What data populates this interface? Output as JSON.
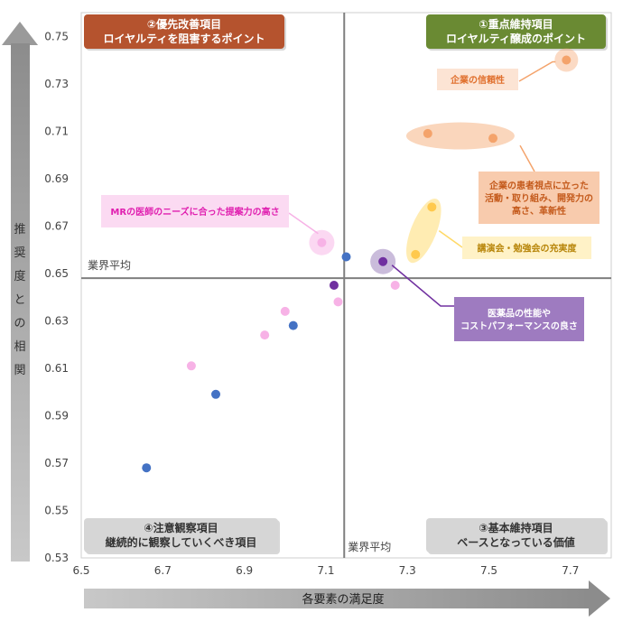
{
  "chart_data": {
    "type": "scatter",
    "xlabel": "各要素の満足度",
    "ylabel": [
      "推",
      "奨",
      "度",
      "と",
      "の",
      "相",
      "関"
    ],
    "xlim": [
      6.5,
      7.8
    ],
    "ylim": [
      0.53,
      0.76
    ],
    "x_ticks": [
      "6.5",
      "6.7",
      "6.9",
      "7.1",
      "7.3",
      "7.5",
      "7.7"
    ],
    "x_tick_values": [
      6.5,
      6.7,
      6.9,
      7.1,
      7.3,
      7.5,
      7.7
    ],
    "y_ticks": [
      "0.75",
      "0.73",
      "0.71",
      "0.69",
      "0.67",
      "0.65",
      "0.63",
      "0.61",
      "0.59",
      "0.57",
      "0.55",
      "0.53"
    ],
    "y_tick_values": [
      0.75,
      0.73,
      0.71,
      0.69,
      0.67,
      0.65,
      0.63,
      0.61,
      0.59,
      0.57,
      0.55,
      0.53
    ],
    "avg_x": 7.145,
    "avg_y": 0.648,
    "avg_label_x": "業界平均",
    "avg_label_y": "業界平均",
    "quadrants": {
      "top_left": {
        "line1": "②優先改善項目",
        "line2": "ロイヤルティを阻害するポイント",
        "color": "#b5532e"
      },
      "top_right": {
        "line1": "①重点維持項目",
        "line2": "ロイヤルティ醸成のポイント",
        "color": "#6a8a33"
      },
      "bottom_left": {
        "line1": "④注意観察項目",
        "line2": "継続的に観察していくべき項目",
        "color": "#d6d6d6"
      },
      "bottom_right": {
        "line1": "③基本維持項目",
        "line2": "ベースとなっている価値",
        "color": "#d6d6d6"
      }
    },
    "series": [
      {
        "name": "blue",
        "color": "#4472c4",
        "points": [
          [
            6.66,
            0.568
          ],
          [
            6.83,
            0.599
          ],
          [
            7.02,
            0.628
          ],
          [
            7.15,
            0.657
          ]
        ]
      },
      {
        "name": "pink",
        "color": "#f7b2e6",
        "points": [
          [
            6.77,
            0.611
          ],
          [
            6.95,
            0.624
          ],
          [
            7.0,
            0.634
          ],
          [
            7.13,
            0.638
          ],
          [
            7.27,
            0.645
          ],
          [
            7.09,
            0.663
          ]
        ]
      },
      {
        "name": "orange",
        "color": "#f4a36b",
        "points": [
          [
            7.35,
            0.709
          ],
          [
            7.51,
            0.707
          ],
          [
            7.69,
            0.74
          ]
        ]
      },
      {
        "name": "yellow",
        "color": "#ffc94d",
        "points": [
          [
            7.32,
            0.658
          ],
          [
            7.36,
            0.678
          ]
        ]
      },
      {
        "name": "purple",
        "color": "#7030a0",
        "points": [
          [
            7.12,
            0.645
          ],
          [
            7.24,
            0.655
          ]
        ]
      }
    ],
    "annotations": [
      {
        "text": [
          "企業の信頼性"
        ],
        "color": "#e0702e",
        "bg": "#fce4d4"
      },
      {
        "text": [
          "企業の患者視点に立った",
          "活動・取り組み、開発力の",
          "高さ、革新性"
        ],
        "color": "#c45a1c",
        "bg": "#f8cbad"
      },
      {
        "text": [
          "講演会・勉強会の充実度"
        ],
        "color": "#b8860b",
        "bg": "#fff2c7"
      },
      {
        "text": [
          "医薬品の性能や",
          "コストパフォーマンスの良さ"
        ],
        "color": "#ffffff",
        "bg": "#9e7bc0"
      },
      {
        "text": [
          "MRの医師のニーズに合った提案力の高さ"
        ],
        "color": "#e020b0",
        "bg": "#fbdaf2"
      }
    ]
  }
}
